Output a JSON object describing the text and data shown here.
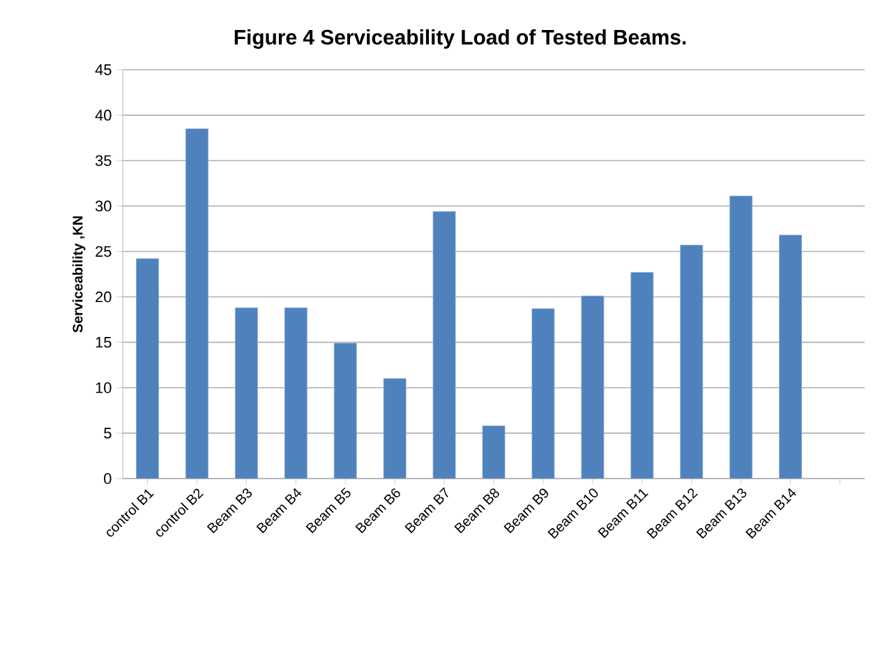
{
  "chart_data": {
    "type": "bar",
    "title": "Figure 4 Serviceability Load of Tested Beams.",
    "ylabel": "Serviceability ,KN",
    "categories": [
      "control B1",
      "control B2",
      "Beam B3",
      "Beam B4",
      "Beam B5",
      "Beam B6",
      "Beam B7",
      "Beam B8",
      "Beam B9",
      "Beam B10",
      "Beam B11",
      "Beam B12",
      "Beam B13",
      "Beam B14",
      null
    ],
    "values": [
      24.2,
      38.5,
      18.8,
      18.8,
      14.9,
      11.0,
      29.4,
      5.8,
      18.7,
      20.1,
      22.7,
      25.7,
      31.1,
      26.8,
      null
    ],
    "color": "#4f81bd",
    "ylim": [
      0,
      45
    ],
    "yticks": [
      0,
      5,
      10,
      15,
      20,
      25,
      30,
      35,
      40,
      45
    ],
    "grid": "y"
  }
}
